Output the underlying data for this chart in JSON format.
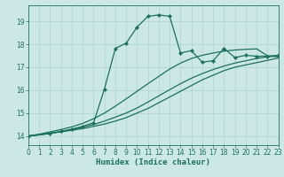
{
  "xlabel": "Humidex (Indice chaleur)",
  "background_color": "#cce8e4",
  "grid_color": "#aad4ca",
  "line_color": "#1a7060",
  "xlim": [
    0,
    23
  ],
  "ylim": [
    13.6,
    19.7
  ],
  "yticks": [
    14,
    15,
    16,
    17,
    18,
    19
  ],
  "xticks": [
    0,
    1,
    2,
    3,
    4,
    5,
    6,
    7,
    8,
    9,
    10,
    11,
    12,
    13,
    14,
    15,
    16,
    17,
    18,
    19,
    20,
    21,
    22,
    23
  ],
  "line1": {
    "x": [
      0,
      1,
      2,
      3,
      4,
      5,
      6,
      7,
      8,
      9,
      10,
      11,
      12,
      13,
      14,
      15,
      16,
      17,
      18,
      19,
      20,
      21,
      22,
      23
    ],
    "y": [
      14.0,
      14.05,
      14.12,
      14.18,
      14.25,
      14.32,
      14.42,
      14.52,
      14.65,
      14.8,
      15.0,
      15.2,
      15.45,
      15.7,
      15.95,
      16.2,
      16.45,
      16.65,
      16.85,
      17.0,
      17.1,
      17.2,
      17.3,
      17.4
    ]
  },
  "line2": {
    "x": [
      0,
      1,
      2,
      3,
      4,
      5,
      6,
      7,
      8,
      9,
      10,
      11,
      12,
      13,
      14,
      15,
      16,
      17,
      18,
      19,
      20,
      21,
      22,
      23
    ],
    "y": [
      14.0,
      14.05,
      14.12,
      14.2,
      14.28,
      14.38,
      14.5,
      14.65,
      14.82,
      15.0,
      15.22,
      15.48,
      15.75,
      16.02,
      16.28,
      16.52,
      16.72,
      16.9,
      17.05,
      17.18,
      17.28,
      17.38,
      17.45,
      17.5
    ]
  },
  "line3": {
    "x": [
      0,
      1,
      2,
      3,
      4,
      5,
      6,
      7,
      8,
      9,
      10,
      11,
      12,
      13,
      14,
      15,
      16,
      17,
      18,
      19,
      20,
      21,
      22,
      23
    ],
    "y": [
      14.0,
      14.08,
      14.18,
      14.28,
      14.4,
      14.55,
      14.75,
      15.0,
      15.3,
      15.62,
      15.95,
      16.28,
      16.6,
      16.92,
      17.18,
      17.38,
      17.52,
      17.62,
      17.7,
      17.75,
      17.78,
      17.8,
      17.5,
      17.45
    ],
    "marker": null
  },
  "line4": {
    "x": [
      0,
      2,
      3,
      4,
      5,
      6,
      7,
      8,
      9,
      10,
      11,
      12,
      13,
      14,
      15,
      16,
      17,
      18,
      19,
      20,
      21,
      22,
      23
    ],
    "y": [
      14.0,
      14.1,
      14.2,
      14.3,
      14.42,
      14.58,
      16.05,
      17.82,
      18.05,
      18.75,
      19.22,
      19.28,
      19.22,
      17.62,
      17.72,
      17.22,
      17.28,
      17.82,
      17.42,
      17.52,
      17.48,
      17.48,
      17.52
    ],
    "marker": "D"
  }
}
